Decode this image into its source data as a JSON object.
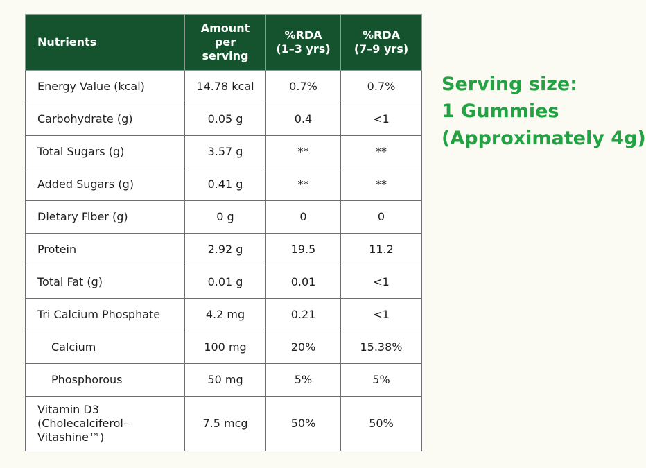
{
  "table": {
    "headers": [
      "Nutrients",
      "Amount\nper\nserving",
      "%RDA\n(1–3 yrs)",
      "%RDA\n(7–9 yrs)"
    ],
    "rows": [
      {
        "name": "Energy Value (kcal)",
        "amount": "14.78 kcal",
        "rda_1_3": "0.7%",
        "rda_7_9": "0.7%"
      },
      {
        "name": "Carbohydrate (g)",
        "amount": "0.05 g",
        "rda_1_3": "0.4",
        "rda_7_9": "<1"
      },
      {
        "name": "Total Sugars (g)",
        "amount": "3.57 g",
        "rda_1_3": "**",
        "rda_7_9": "**"
      },
      {
        "name": "Added Sugars (g)",
        "amount": "0.41 g",
        "rda_1_3": "**",
        "rda_7_9": "**"
      },
      {
        "name": "Dietary Fiber (g)",
        "amount": "0 g",
        "rda_1_3": "0",
        "rda_7_9": "0"
      },
      {
        "name": "Protein",
        "amount": "2.92 g",
        "rda_1_3": "19.5",
        "rda_7_9": "11.2"
      },
      {
        "name": "Total Fat (g)",
        "amount": "0.01 g",
        "rda_1_3": "0.01",
        "rda_7_9": "<1"
      },
      {
        "name": "Tri Calcium Phosphate",
        "amount": "4.2 mg",
        "rda_1_3": "0.21",
        "rda_7_9": "<1"
      },
      {
        "name": "Calcium",
        "amount": "100 mg",
        "rda_1_3": "20%",
        "rda_7_9": "15.38%"
      },
      {
        "name": "Phosphorous",
        "amount": "50 mg",
        "rda_1_3": "5%",
        "rda_7_9": "5%"
      },
      {
        "name": "Vitamin D3\n(Cholecalciferol–\nVitashine™)",
        "amount": "7.5 mcg",
        "rda_1_3": "50%",
        "rda_7_9": "50%"
      }
    ]
  },
  "serving": {
    "line1": "Serving size:",
    "line2": "1 Gummies",
    "line3": "(Approximately 4g)"
  },
  "colors": {
    "header_bg": "#14532d",
    "accent_green": "#23a243",
    "background": "#fbfaf3"
  }
}
